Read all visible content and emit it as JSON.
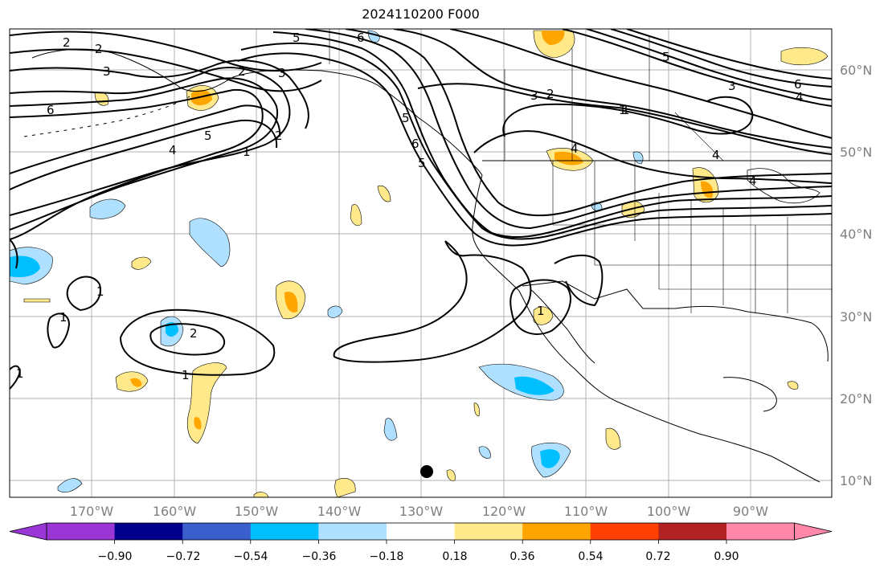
{
  "title": "2024110200 F000",
  "lon_labels": [
    "170°W",
    "160°W",
    "150°W",
    "140°W",
    "130°W",
    "120°W",
    "110°W",
    "100°W",
    "90°W"
  ],
  "lat_labels": [
    "60°N",
    "50°N",
    "40°N",
    "30°N",
    "20°N",
    "10°N"
  ],
  "colorbar": {
    "ticks": [
      "−0.90",
      "−0.72",
      "−0.54",
      "−0.36",
      "−0.18",
      "0.18",
      "0.36",
      "0.54",
      "0.72",
      "0.90"
    ],
    "colors": [
      "#9a36d6",
      "#00008b",
      "#3a5fcd",
      "#00bfff",
      "#b0e0ff",
      "#ffffff",
      "#ffe98a",
      "#ffa500",
      "#ff4000",
      "#b22222",
      "#ff88aa"
    ]
  },
  "contour_labels": [
    "2",
    "2",
    "3",
    "3",
    "2",
    "6",
    "6",
    "5",
    "4",
    "1",
    "2",
    "5",
    "6",
    "5",
    "4",
    "3",
    "2",
    "1",
    "5",
    "3",
    "6",
    "4",
    "4",
    "1",
    "1",
    "1",
    "2",
    "1",
    "1",
    "1",
    "5",
    "4"
  ],
  "colors": {
    "axis_label": "#7f7f7f",
    "grid": "#b0b0b0",
    "contour": "#000000"
  }
}
